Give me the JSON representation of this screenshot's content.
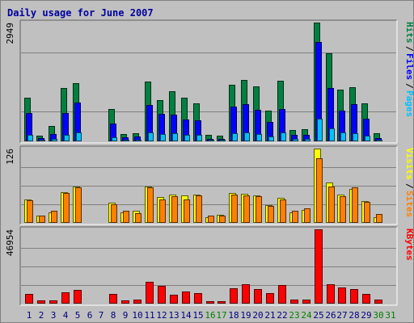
{
  "chart_data": {
    "type": "bar",
    "title": "Daily usage for June 2007",
    "categories": [
      "1",
      "2",
      "3",
      "4",
      "5",
      "6",
      "7",
      "8",
      "9",
      "10",
      "11",
      "12",
      "13",
      "14",
      "15",
      "16",
      "17",
      "18",
      "19",
      "20",
      "21",
      "22",
      "23",
      "24",
      "25",
      "26",
      "27",
      "28",
      "29",
      "30",
      "31"
    ],
    "weekend_days": [
      "16",
      "17",
      "23",
      "24",
      "30",
      "31"
    ],
    "panels": [
      {
        "key": "hits",
        "ymax_label": "2949",
        "ymax": 2949,
        "right_labels": [
          "Pages",
          "Files",
          "Hits"
        ],
        "right_colors": [
          "#00c0ff",
          "#0000ff",
          "#008040"
        ],
        "series": [
          {
            "name": "Hits",
            "color": "#008040",
            "values": [
              1090,
              150,
              380,
              1320,
              1440,
              0,
              0,
              810,
              180,
              210,
              1490,
              1020,
              1250,
              1080,
              950,
              170,
              150,
              1410,
              1520,
              1360,
              760,
              1500,
              280,
              300,
              2949,
              2190,
              1280,
              1350,
              940,
              200,
              0
            ]
          },
          {
            "name": "Files",
            "color": "#0000ff",
            "values": [
              700,
              80,
              180,
              700,
              960,
              0,
              0,
              440,
              100,
              120,
              900,
              680,
              660,
              540,
              520,
              60,
              60,
              860,
              930,
              790,
              480,
              800,
              160,
              170,
              2460,
              1330,
              760,
              930,
              560,
              90,
              0
            ]
          },
          {
            "name": "Pages",
            "color": "#00c0ff",
            "values": [
              160,
              40,
              70,
              170,
              230,
              0,
              0,
              110,
              40,
              50,
              220,
              190,
              200,
              170,
              170,
              40,
              40,
              200,
              230,
              190,
              120,
              220,
              60,
              60,
              560,
              320,
              220,
              210,
              140,
              40,
              0
            ]
          }
        ]
      },
      {
        "key": "visits",
        "ymax_label": "126",
        "ymax": 126,
        "right_labels": [
          "Sites",
          "Visits"
        ],
        "right_colors": [
          "#ff8000",
          "#ffff00"
        ],
        "series": [
          {
            "name": "Visits",
            "color": "#ffff00",
            "values": [
              40,
              13,
              18,
              52,
              62,
              0,
              0,
              34,
              18,
              20,
              62,
              44,
              48,
              46,
              48,
              10,
              14,
              51,
              49,
              47,
              30,
              42,
              18,
              22,
              126,
              68,
              48,
              58,
              37,
              10,
              0
            ]
          },
          {
            "name": "Sites",
            "color": "#ff8000",
            "values": [
              38,
              12,
              20,
              50,
              60,
              0,
              0,
              32,
              20,
              17,
              60,
              40,
              45,
              40,
              47,
              12,
              13,
              48,
              46,
              45,
              29,
              40,
              21,
              25,
              110,
              62,
              45,
              60,
              36,
              15,
              0
            ]
          }
        ]
      },
      {
        "key": "kbytes",
        "ymax_label": "46954",
        "ymax": 46954,
        "right_labels": [
          "KBytes"
        ],
        "right_colors": [
          "#ff0000"
        ],
        "series": [
          {
            "name": "KBytes",
            "color": "#ff0000",
            "values": [
              6100,
              2100,
              2100,
              7200,
              8600,
              0,
              0,
              6000,
              2100,
              2500,
              14000,
              11000,
              5700,
              7900,
              6500,
              1500,
              1500,
              9900,
              12500,
              9000,
              6600,
              11600,
              2600,
              2800,
              46954,
              12000,
              10300,
              9100,
              6000,
              2300,
              0
            ]
          }
        ]
      }
    ],
    "weekday_label_color": "#000080",
    "weekend_label_color": "#008000"
  }
}
